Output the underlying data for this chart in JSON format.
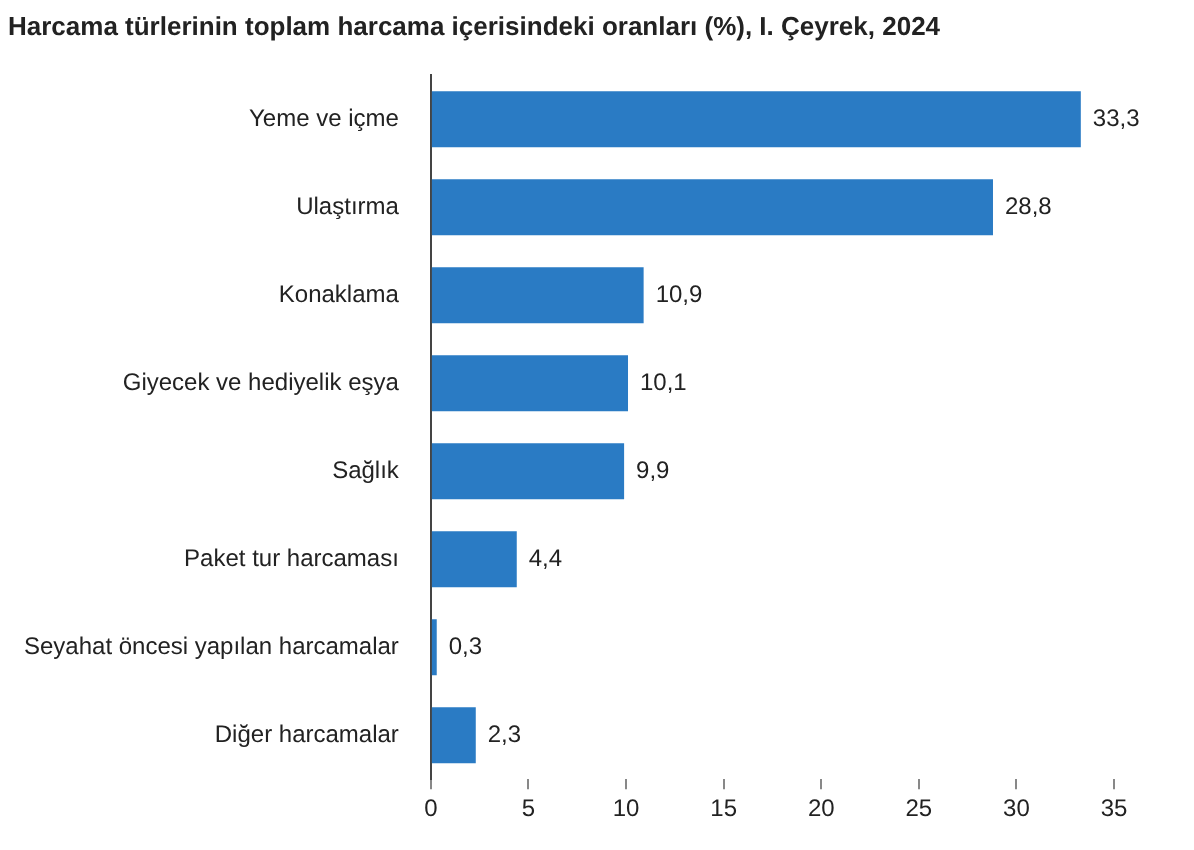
{
  "chart_data": {
    "type": "bar",
    "orientation": "horizontal",
    "title": "Harcama türlerinin toplam harcama içerisindeki oranları (%), I. Çeyrek, 2024",
    "categories": [
      "Yeme ve içme",
      "Ulaştırma",
      "Konaklama",
      "Giyecek ve hediyelik eşya",
      "Sağlık",
      "Paket tur harcaması",
      "Seyahat öncesi yapılan harcamalar",
      "Diğer harcamalar"
    ],
    "values": [
      33.3,
      28.8,
      10.9,
      10.1,
      9.9,
      4.4,
      0.3,
      2.3
    ],
    "value_labels": [
      "33,3",
      "28,8",
      "10,9",
      "10,1",
      "9,9",
      "4,4",
      "0,3",
      "2,3"
    ],
    "color": "#2a7bc4",
    "xlim": [
      0,
      35
    ],
    "xticks": [
      0,
      5,
      10,
      15,
      20,
      25,
      30,
      35
    ],
    "grid": false,
    "legend": false
  }
}
